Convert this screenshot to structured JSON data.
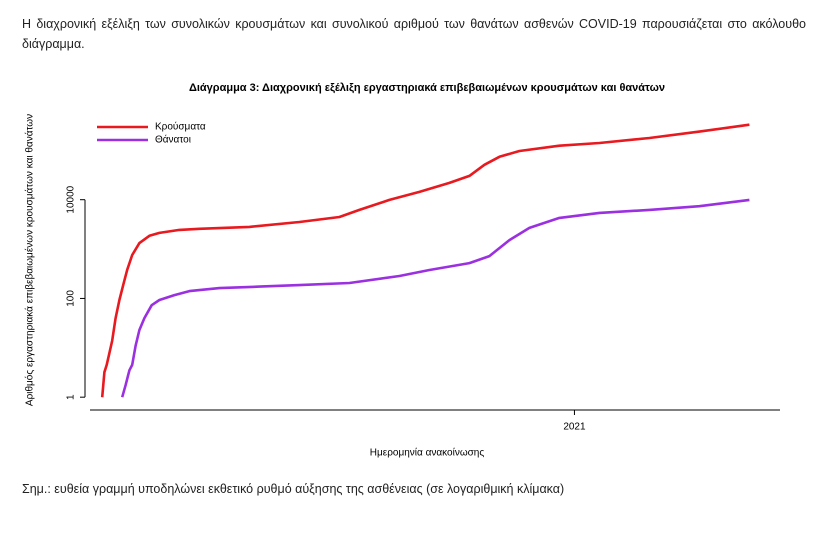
{
  "intro": "Η διαχρονική εξέλιξη των συνολικών κρουσμάτων και συνολικού αριθμού των θανάτων ασθενών COVID-19 παρουσιάζεται στο ακόλουθο διάγραμμα.",
  "chart_data": {
    "type": "line",
    "title": "Διάγραμμα 3: Διαχρονική εξέλιξη εργαστηριακά επιβεβαιωμένων κρουσμάτων και θανάτων",
    "x_label": "Ημερομηνία ανακοίνωσης",
    "y_label": "Αριθμός εργαστηριακά επιβεβαιωμένων κρουσμάτων και θανάτων",
    "log_y": true,
    "xlim": [
      2020.11,
      2021.37
    ],
    "xticks": [
      2021
    ],
    "ylim": [
      0.55,
      720000
    ],
    "yticks": [
      1,
      100,
      10000
    ],
    "legend": "top-left",
    "series": [
      {
        "name": "Κρούσματα",
        "color": "#e8191f",
        "x": [
          2020.15,
          2020.154,
          2020.158,
          2020.163,
          2020.168,
          2020.174,
          2020.181,
          2020.188,
          2020.195,
          2020.204,
          2020.217,
          2020.235,
          2020.253,
          2020.289,
          2020.325,
          2020.415,
          2020.505,
          2020.577,
          2020.613,
          2020.667,
          2020.721,
          2020.775,
          2020.811,
          2020.838,
          2020.865,
          2020.901,
          2020.973,
          2021.045,
          2021.135,
          2021.225,
          2021.315
        ],
        "values": [
          1,
          3.2,
          4.5,
          7.8,
          14,
          40,
          93,
          190,
          380,
          760,
          1320,
          1860,
          2130,
          2440,
          2570,
          2810,
          3540,
          4470,
          6200,
          9900,
          14400,
          21900,
          30300,
          51000,
          74000,
          97000,
          124000,
          141000,
          178000,
          240000,
          331000
        ]
      },
      {
        "name": "Θάνατοι",
        "color": "#9b30e0",
        "x": [
          2020.186,
          2020.192,
          2020.199,
          2020.204,
          2020.21,
          2020.217,
          2020.226,
          2020.239,
          2020.253,
          2020.28,
          2020.307,
          2020.361,
          2020.433,
          2020.505,
          2020.595,
          2020.685,
          2020.739,
          2020.811,
          2020.847,
          2020.883,
          2020.919,
          2020.973,
          2021.045,
          2021.135,
          2021.225,
          2021.315
        ],
        "values": [
          1,
          1.75,
          3.5,
          4.5,
          11,
          23,
          40,
          73,
          93,
          117,
          141,
          162,
          174,
          186,
          205,
          285,
          377,
          520,
          720,
          1520,
          2680,
          4270,
          5400,
          6200,
          7400,
          9900
        ]
      }
    ]
  },
  "note": "Σημ.: ευθεία γραμμή υποδηλώνει εκθετικό ρυθμό αύξησης της ασθένειας (σε λογαριθμική κλίμακα)"
}
